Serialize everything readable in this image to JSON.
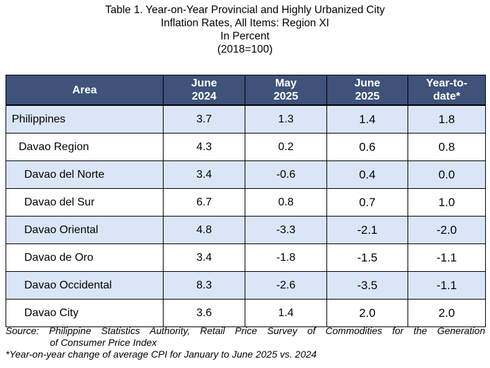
{
  "title": {
    "lines": [
      "Table 1. Year-on-Year Provincial and Highly Urbanized City",
      "Inflation Rates, All Items: Region XI",
      "In Percent",
      "(2018=100)"
    ]
  },
  "table": {
    "headers": [
      {
        "line1": "Area",
        "line2": ""
      },
      {
        "line1": "June",
        "line2": "2024"
      },
      {
        "line1": "May",
        "line2": "2025"
      },
      {
        "line1": "June",
        "line2": "2025"
      },
      {
        "line1": "Year-to-",
        "line2": "date*"
      }
    ],
    "rows": [
      {
        "area": "Philippines",
        "level": 0,
        "june2024": "3.7",
        "may2025": "1.3",
        "june2025": "1.4",
        "ytd": "1.8"
      },
      {
        "area": "Davao Region",
        "level": 1,
        "june2024": "4.3",
        "may2025": "0.2",
        "june2025": "0.6",
        "ytd": "0.8"
      },
      {
        "area": "Davao del Norte",
        "level": 2,
        "june2024": "3.4",
        "may2025": "-0.6",
        "june2025": "0.4",
        "ytd": "0.0"
      },
      {
        "area": "Davao del Sur",
        "level": 2,
        "june2024": "6.7",
        "may2025": "0.8",
        "june2025": "0.7",
        "ytd": "1.0"
      },
      {
        "area": "Davao Oriental",
        "level": 2,
        "june2024": "4.8",
        "may2025": "-3.3",
        "june2025": "-2.1",
        "ytd": "-2.0"
      },
      {
        "area": "Davao de Oro",
        "level": 2,
        "june2024": "3.4",
        "may2025": "-1.8",
        "june2025": "-1.5",
        "ytd": "-1.1"
      },
      {
        "area": "Davao Occidental",
        "level": 2,
        "june2024": "8.3",
        "may2025": "-2.6",
        "june2025": "-3.5",
        "ytd": "-1.1"
      },
      {
        "area": "Davao City",
        "level": 2,
        "june2024": "3.6",
        "may2025": "1.4",
        "june2025": "2.0",
        "ytd": "2.0"
      }
    ]
  },
  "notes": {
    "source_line1": "Source: Philippine Statistics Authority, Retail Price Survey of Commodities for the Generation",
    "source_line2": "of Consumer Price Index",
    "footnote": "*Year-on-year change of average CPI for January to June 2025 vs. 2024"
  },
  "colors": {
    "header_bg": "#3e527a",
    "shade_bg": "#dae6f7"
  }
}
